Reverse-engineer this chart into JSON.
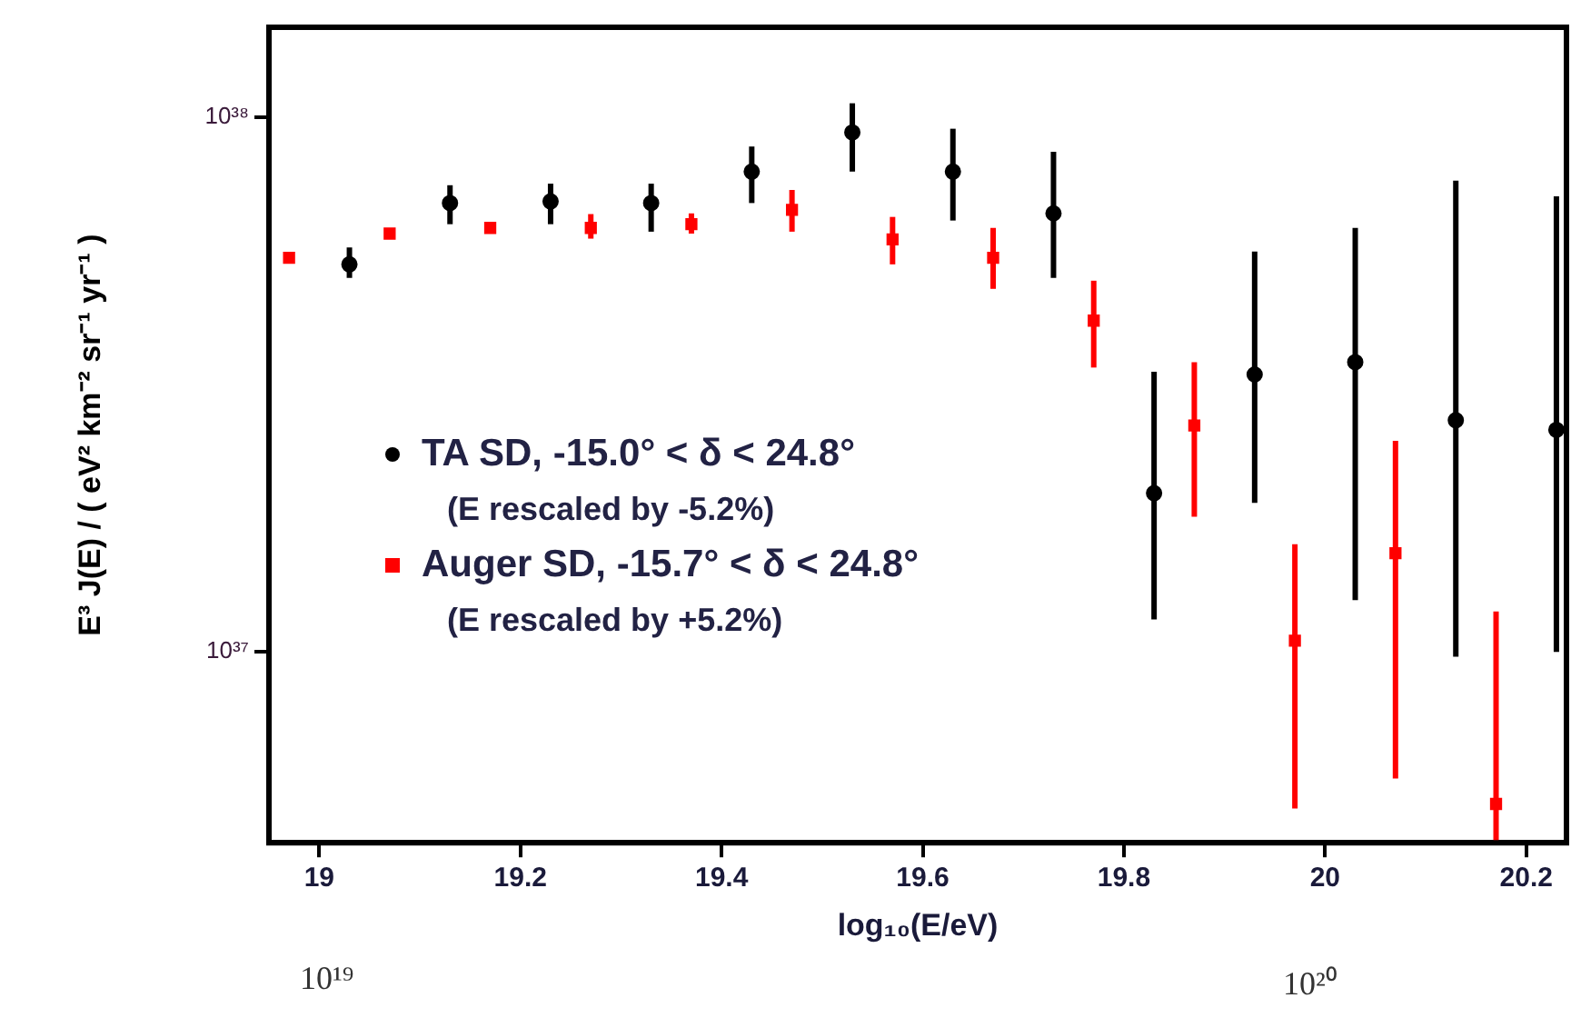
{
  "chart_data": {
    "type": "scatter",
    "xlabel": "log₁₀(E/eV)",
    "ylabel": "E³ J(E) / ( eV² km⁻² sr⁻¹ yr⁻¹ )",
    "xlim": [
      18.95,
      20.24
    ],
    "xticks": [
      19,
      19.2,
      19.4,
      19.6,
      19.8,
      20,
      20.2
    ],
    "ylim": [
      4.4e+36,
      1.47e+38
    ],
    "yticks": [
      {
        "value": 1e+37,
        "label": "10³⁷"
      },
      {
        "value": 1e+38,
        "label": "10³⁸"
      }
    ],
    "log": "y",
    "grid": false,
    "legend": "left",
    "annotations": [
      "(E rescaled by -5.2%)",
      "(E rescaled by +5.2%)",
      "10¹⁹",
      "10²⁰"
    ],
    "series": [
      {
        "name": "TA SD, -15.0° < δ < 24.8°",
        "color": "#000000",
        "marker": "circle",
        "x": [
          19.03,
          19.13,
          19.23,
          19.33,
          19.43,
          19.53,
          19.63,
          19.73,
          19.83,
          19.93,
          20.03,
          20.13,
          20.23
        ],
        "values": [
          5.3e+37,
          6.9e+37,
          6.95e+37,
          6.9e+37,
          7.9e+37,
          9.35e+37,
          7.9e+37,
          6.6e+37,
          1.98e+37,
          3.3e+37,
          3.48e+37,
          2.71e+37,
          2.6e+37
        ],
        "errors": [
          [
            5e+37,
            5.7e+37
          ],
          [
            6.3e+37,
            7.45e+37
          ],
          [
            6.3e+37,
            7.5e+37
          ],
          [
            6.1e+37,
            7.5e+37
          ],
          [
            6.9e+37,
            8.8e+37
          ],
          [
            7.9e+37,
            1.06e+38
          ],
          [
            6.4e+37,
            9.5e+37
          ],
          [
            5e+37,
            8.6e+37
          ],
          [
            1.15e+37,
            3.34e+37
          ],
          [
            1.9e+37,
            5.6e+37
          ],
          [
            1.25e+37,
            6.2e+37
          ],
          [
            9.8e+36,
            7.6e+37
          ],
          [
            1e+37,
            7.1e+37
          ]
        ]
      },
      {
        "name": "Auger SD, -15.7° < δ < 24.8°",
        "color": "#ff0000",
        "marker": "square",
        "x": [
          18.97,
          19.07,
          19.17,
          19.27,
          19.37,
          19.47,
          19.57,
          19.67,
          19.77,
          19.87,
          19.97,
          20.07,
          20.17
        ],
        "values": [
          5.45e+37,
          6.05e+37,
          6.2e+37,
          6.2e+37,
          6.3e+37,
          6.7e+37,
          5.9e+37,
          5.45e+37,
          4.16e+37,
          2.65e+37,
          1.05e+37,
          1.53e+37,
          5.2e+36
        ],
        "errors": [
          null,
          null,
          null,
          [
            5.92e+37,
            6.58e+37
          ],
          [
            6.05e+37,
            6.6e+37
          ],
          [
            6.1e+37,
            7.3e+37
          ],
          [
            5.3e+37,
            6.5e+37
          ],
          [
            4.77e+37,
            6.2e+37
          ],
          [
            3.4e+37,
            4.94e+37
          ],
          [
            1.79e+37,
            3.48e+37
          ],
          [
            5.1e+36,
            1.59e+37
          ],
          [
            5.8e+36,
            2.48e+37
          ],
          [
            4.4e+36,
            1.19e+37
          ]
        ]
      }
    ]
  }
}
